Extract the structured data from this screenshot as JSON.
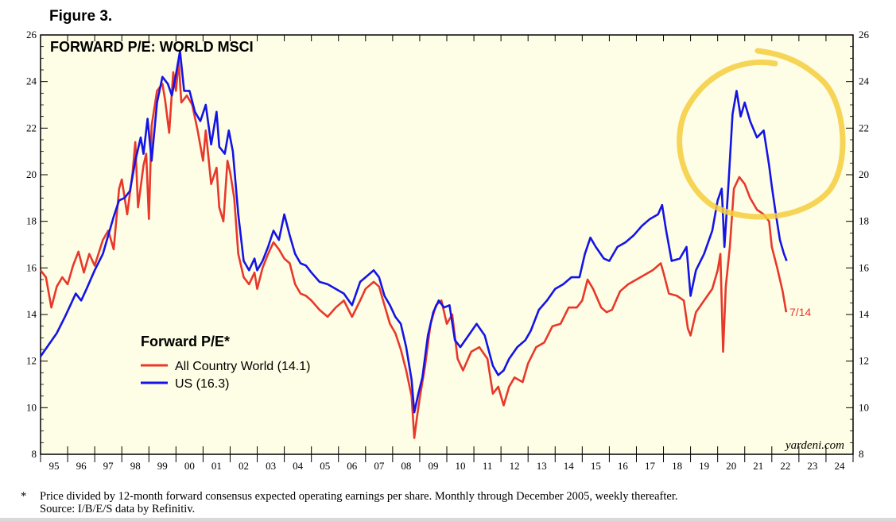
{
  "figure_label": "Figure 3.",
  "chart_data": {
    "type": "line",
    "title": "FORWARD P/E: WORLD MSCI",
    "legend_title": "Forward P/E*",
    "legend_position": "bottom-left",
    "watermark": "yardeni.com",
    "end_label": "7/14",
    "y_ticks": [
      8,
      10,
      12,
      14,
      16,
      18,
      20,
      22,
      24,
      26
    ],
    "x_tick_labels": [
      "95",
      "96",
      "97",
      "98",
      "99",
      "00",
      "01",
      "02",
      "03",
      "04",
      "05",
      "06",
      "07",
      "08",
      "09",
      "10",
      "11",
      "12",
      "13",
      "14",
      "15",
      "16",
      "17",
      "18",
      "19",
      "20",
      "21",
      "22",
      "23",
      "24"
    ],
    "xlim": [
      1995,
      2025
    ],
    "ylim": [
      8,
      26
    ],
    "grid": false,
    "annotation": "hand-drawn yellow circle around 2020-2022 peak",
    "series": [
      {
        "name": "All Country World (14.1)",
        "color": "#e8382b",
        "points": [
          [
            1995.0,
            15.9
          ],
          [
            1995.2,
            15.6
          ],
          [
            1995.4,
            14.3
          ],
          [
            1995.6,
            15.2
          ],
          [
            1995.8,
            15.6
          ],
          [
            1996.0,
            15.3
          ],
          [
            1996.2,
            16.1
          ],
          [
            1996.4,
            16.7
          ],
          [
            1996.6,
            15.8
          ],
          [
            1996.8,
            16.6
          ],
          [
            1997.0,
            16.1
          ],
          [
            1997.3,
            17.2
          ],
          [
            1997.5,
            17.6
          ],
          [
            1997.7,
            16.8
          ],
          [
            1997.9,
            19.4
          ],
          [
            1998.0,
            19.8
          ],
          [
            1998.2,
            18.3
          ],
          [
            1998.4,
            20.1
          ],
          [
            1998.5,
            21.4
          ],
          [
            1998.6,
            18.6
          ],
          [
            1998.8,
            20.4
          ],
          [
            1998.9,
            20.9
          ],
          [
            1999.0,
            18.1
          ],
          [
            1999.1,
            22.1
          ],
          [
            1999.3,
            23.6
          ],
          [
            1999.5,
            23.9
          ],
          [
            1999.6,
            23.2
          ],
          [
            1999.75,
            21.8
          ],
          [
            1999.9,
            24.4
          ],
          [
            2000.0,
            23.6
          ],
          [
            2000.1,
            24.9
          ],
          [
            2000.2,
            23.1
          ],
          [
            2000.4,
            23.4
          ],
          [
            2000.6,
            23.0
          ],
          [
            2000.8,
            21.9
          ],
          [
            2001.0,
            20.6
          ],
          [
            2001.1,
            21.9
          ],
          [
            2001.3,
            19.6
          ],
          [
            2001.5,
            20.3
          ],
          [
            2001.6,
            18.6
          ],
          [
            2001.75,
            18.0
          ],
          [
            2001.9,
            20.6
          ],
          [
            2002.0,
            20.1
          ],
          [
            2002.15,
            19.0
          ],
          [
            2002.3,
            16.6
          ],
          [
            2002.5,
            15.6
          ],
          [
            2002.7,
            15.3
          ],
          [
            2002.9,
            15.8
          ],
          [
            2003.0,
            15.1
          ],
          [
            2003.2,
            16.0
          ],
          [
            2003.4,
            16.6
          ],
          [
            2003.6,
            17.1
          ],
          [
            2003.8,
            16.8
          ],
          [
            2004.0,
            16.4
          ],
          [
            2004.2,
            16.2
          ],
          [
            2004.4,
            15.3
          ],
          [
            2004.6,
            14.9
          ],
          [
            2004.8,
            14.8
          ],
          [
            2005.0,
            14.6
          ],
          [
            2005.3,
            14.2
          ],
          [
            2005.6,
            13.9
          ],
          [
            2005.9,
            14.3
          ],
          [
            2006.2,
            14.6
          ],
          [
            2006.5,
            13.9
          ],
          [
            2006.8,
            14.6
          ],
          [
            2007.0,
            15.1
          ],
          [
            2007.3,
            15.4
          ],
          [
            2007.5,
            15.2
          ],
          [
            2007.7,
            14.4
          ],
          [
            2007.9,
            13.6
          ],
          [
            2008.1,
            13.2
          ],
          [
            2008.3,
            12.5
          ],
          [
            2008.5,
            11.6
          ],
          [
            2008.7,
            10.5
          ],
          [
            2008.8,
            8.7
          ],
          [
            2008.9,
            9.6
          ],
          [
            2009.0,
            10.4
          ],
          [
            2009.2,
            11.8
          ],
          [
            2009.4,
            13.6
          ],
          [
            2009.6,
            14.4
          ],
          [
            2009.8,
            14.6
          ],
          [
            2010.0,
            13.6
          ],
          [
            2010.2,
            14.0
          ],
          [
            2010.4,
            12.1
          ],
          [
            2010.6,
            11.6
          ],
          [
            2010.9,
            12.4
          ],
          [
            2011.2,
            12.6
          ],
          [
            2011.5,
            12.1
          ],
          [
            2011.7,
            10.6
          ],
          [
            2011.9,
            10.9
          ],
          [
            2012.1,
            10.1
          ],
          [
            2012.3,
            10.9
          ],
          [
            2012.5,
            11.3
          ],
          [
            2012.8,
            11.1
          ],
          [
            2013.0,
            11.9
          ],
          [
            2013.3,
            12.6
          ],
          [
            2013.6,
            12.8
          ],
          [
            2013.9,
            13.5
          ],
          [
            2014.2,
            13.6
          ],
          [
            2014.5,
            14.3
          ],
          [
            2014.8,
            14.3
          ],
          [
            2015.0,
            14.6
          ],
          [
            2015.2,
            15.5
          ],
          [
            2015.4,
            15.1
          ],
          [
            2015.7,
            14.3
          ],
          [
            2015.9,
            14.1
          ],
          [
            2016.1,
            14.2
          ],
          [
            2016.4,
            15.0
          ],
          [
            2016.7,
            15.3
          ],
          [
            2017.0,
            15.5
          ],
          [
            2017.3,
            15.7
          ],
          [
            2017.6,
            15.9
          ],
          [
            2017.9,
            16.2
          ],
          [
            2018.0,
            15.8
          ],
          [
            2018.2,
            14.9
          ],
          [
            2018.5,
            14.8
          ],
          [
            2018.75,
            14.6
          ],
          [
            2018.9,
            13.4
          ],
          [
            2019.0,
            13.1
          ],
          [
            2019.2,
            14.1
          ],
          [
            2019.5,
            14.6
          ],
          [
            2019.8,
            15.1
          ],
          [
            2020.0,
            15.9
          ],
          [
            2020.1,
            16.6
          ],
          [
            2020.2,
            12.4
          ],
          [
            2020.3,
            15.2
          ],
          [
            2020.45,
            16.9
          ],
          [
            2020.6,
            19.4
          ],
          [
            2020.8,
            19.9
          ],
          [
            2021.0,
            19.6
          ],
          [
            2021.2,
            19.0
          ],
          [
            2021.45,
            18.5
          ],
          [
            2021.7,
            18.3
          ],
          [
            2021.9,
            18.0
          ],
          [
            2022.0,
            16.9
          ],
          [
            2022.2,
            16.0
          ],
          [
            2022.4,
            15.0
          ],
          [
            2022.53,
            14.1
          ]
        ]
      },
      {
        "name": "US (16.3)",
        "color": "#1414e6",
        "points": [
          [
            1995.0,
            12.2
          ],
          [
            1995.3,
            12.7
          ],
          [
            1995.6,
            13.2
          ],
          [
            1995.9,
            13.9
          ],
          [
            1996.1,
            14.4
          ],
          [
            1996.3,
            14.9
          ],
          [
            1996.5,
            14.6
          ],
          [
            1996.7,
            15.1
          ],
          [
            1997.0,
            15.9
          ],
          [
            1997.3,
            16.6
          ],
          [
            1997.5,
            17.4
          ],
          [
            1997.7,
            18.2
          ],
          [
            1997.9,
            18.9
          ],
          [
            1998.1,
            19.0
          ],
          [
            1998.3,
            19.3
          ],
          [
            1998.5,
            20.6
          ],
          [
            1998.7,
            21.6
          ],
          [
            1998.8,
            20.9
          ],
          [
            1998.95,
            22.4
          ],
          [
            1999.1,
            20.6
          ],
          [
            1999.3,
            23.1
          ],
          [
            1999.5,
            24.2
          ],
          [
            1999.7,
            23.9
          ],
          [
            1999.85,
            23.4
          ],
          [
            2000.0,
            24.3
          ],
          [
            2000.15,
            25.3
          ],
          [
            2000.3,
            23.6
          ],
          [
            2000.5,
            23.6
          ],
          [
            2000.7,
            22.7
          ],
          [
            2000.9,
            22.3
          ],
          [
            2001.1,
            23.0
          ],
          [
            2001.3,
            21.3
          ],
          [
            2001.5,
            22.7
          ],
          [
            2001.6,
            21.2
          ],
          [
            2001.8,
            20.9
          ],
          [
            2001.95,
            21.9
          ],
          [
            2002.1,
            21.0
          ],
          [
            2002.3,
            18.3
          ],
          [
            2002.5,
            16.3
          ],
          [
            2002.7,
            15.9
          ],
          [
            2002.9,
            16.4
          ],
          [
            2003.0,
            15.9
          ],
          [
            2003.2,
            16.3
          ],
          [
            2003.4,
            16.9
          ],
          [
            2003.6,
            17.6
          ],
          [
            2003.8,
            17.2
          ],
          [
            2004.0,
            18.3
          ],
          [
            2004.2,
            17.4
          ],
          [
            2004.4,
            16.6
          ],
          [
            2004.6,
            16.2
          ],
          [
            2004.8,
            16.1
          ],
          [
            2005.0,
            15.8
          ],
          [
            2005.3,
            15.4
          ],
          [
            2005.6,
            15.3
          ],
          [
            2005.9,
            15.1
          ],
          [
            2006.2,
            14.9
          ],
          [
            2006.5,
            14.4
          ],
          [
            2006.8,
            15.4
          ],
          [
            2007.0,
            15.6
          ],
          [
            2007.3,
            15.9
          ],
          [
            2007.5,
            15.6
          ],
          [
            2007.7,
            14.8
          ],
          [
            2007.9,
            14.4
          ],
          [
            2008.1,
            13.9
          ],
          [
            2008.3,
            13.6
          ],
          [
            2008.5,
            12.6
          ],
          [
            2008.7,
            11.2
          ],
          [
            2008.8,
            9.8
          ],
          [
            2008.95,
            10.6
          ],
          [
            2009.1,
            11.3
          ],
          [
            2009.3,
            13.1
          ],
          [
            2009.5,
            14.1
          ],
          [
            2009.7,
            14.6
          ],
          [
            2009.9,
            14.3
          ],
          [
            2010.1,
            14.4
          ],
          [
            2010.3,
            12.9
          ],
          [
            2010.5,
            12.6
          ],
          [
            2010.8,
            13.1
          ],
          [
            2011.1,
            13.6
          ],
          [
            2011.4,
            13.1
          ],
          [
            2011.7,
            11.8
          ],
          [
            2011.9,
            11.4
          ],
          [
            2012.1,
            11.6
          ],
          [
            2012.3,
            12.1
          ],
          [
            2012.6,
            12.6
          ],
          [
            2012.9,
            12.9
          ],
          [
            2013.1,
            13.3
          ],
          [
            2013.4,
            14.2
          ],
          [
            2013.7,
            14.6
          ],
          [
            2014.0,
            15.1
          ],
          [
            2014.3,
            15.3
          ],
          [
            2014.6,
            15.6
          ],
          [
            2014.9,
            15.6
          ],
          [
            2015.1,
            16.6
          ],
          [
            2015.3,
            17.3
          ],
          [
            2015.5,
            16.9
          ],
          [
            2015.8,
            16.4
          ],
          [
            2016.0,
            16.3
          ],
          [
            2016.3,
            16.9
          ],
          [
            2016.6,
            17.1
          ],
          [
            2016.9,
            17.4
          ],
          [
            2017.2,
            17.8
          ],
          [
            2017.5,
            18.1
          ],
          [
            2017.8,
            18.3
          ],
          [
            2017.95,
            18.7
          ],
          [
            2018.1,
            17.6
          ],
          [
            2018.3,
            16.3
          ],
          [
            2018.6,
            16.4
          ],
          [
            2018.85,
            16.9
          ],
          [
            2019.0,
            14.8
          ],
          [
            2019.2,
            15.9
          ],
          [
            2019.5,
            16.6
          ],
          [
            2019.8,
            17.6
          ],
          [
            2020.0,
            18.9
          ],
          [
            2020.15,
            19.4
          ],
          [
            2020.25,
            16.9
          ],
          [
            2020.4,
            19.6
          ],
          [
            2020.55,
            22.6
          ],
          [
            2020.7,
            23.6
          ],
          [
            2020.85,
            22.5
          ],
          [
            2021.0,
            23.1
          ],
          [
            2021.2,
            22.3
          ],
          [
            2021.45,
            21.6
          ],
          [
            2021.7,
            21.9
          ],
          [
            2021.9,
            20.4
          ],
          [
            2022.0,
            19.5
          ],
          [
            2022.15,
            18.3
          ],
          [
            2022.3,
            17.2
          ],
          [
            2022.45,
            16.6
          ],
          [
            2022.55,
            16.3
          ]
        ]
      }
    ]
  },
  "footnote": {
    "marker": "*",
    "text": "Price divided by 12-month forward consensus expected operating earnings per share. Monthly through December 2005, weekly thereafter.",
    "source": "Source: I/B/E/S data by Refinitiv."
  }
}
